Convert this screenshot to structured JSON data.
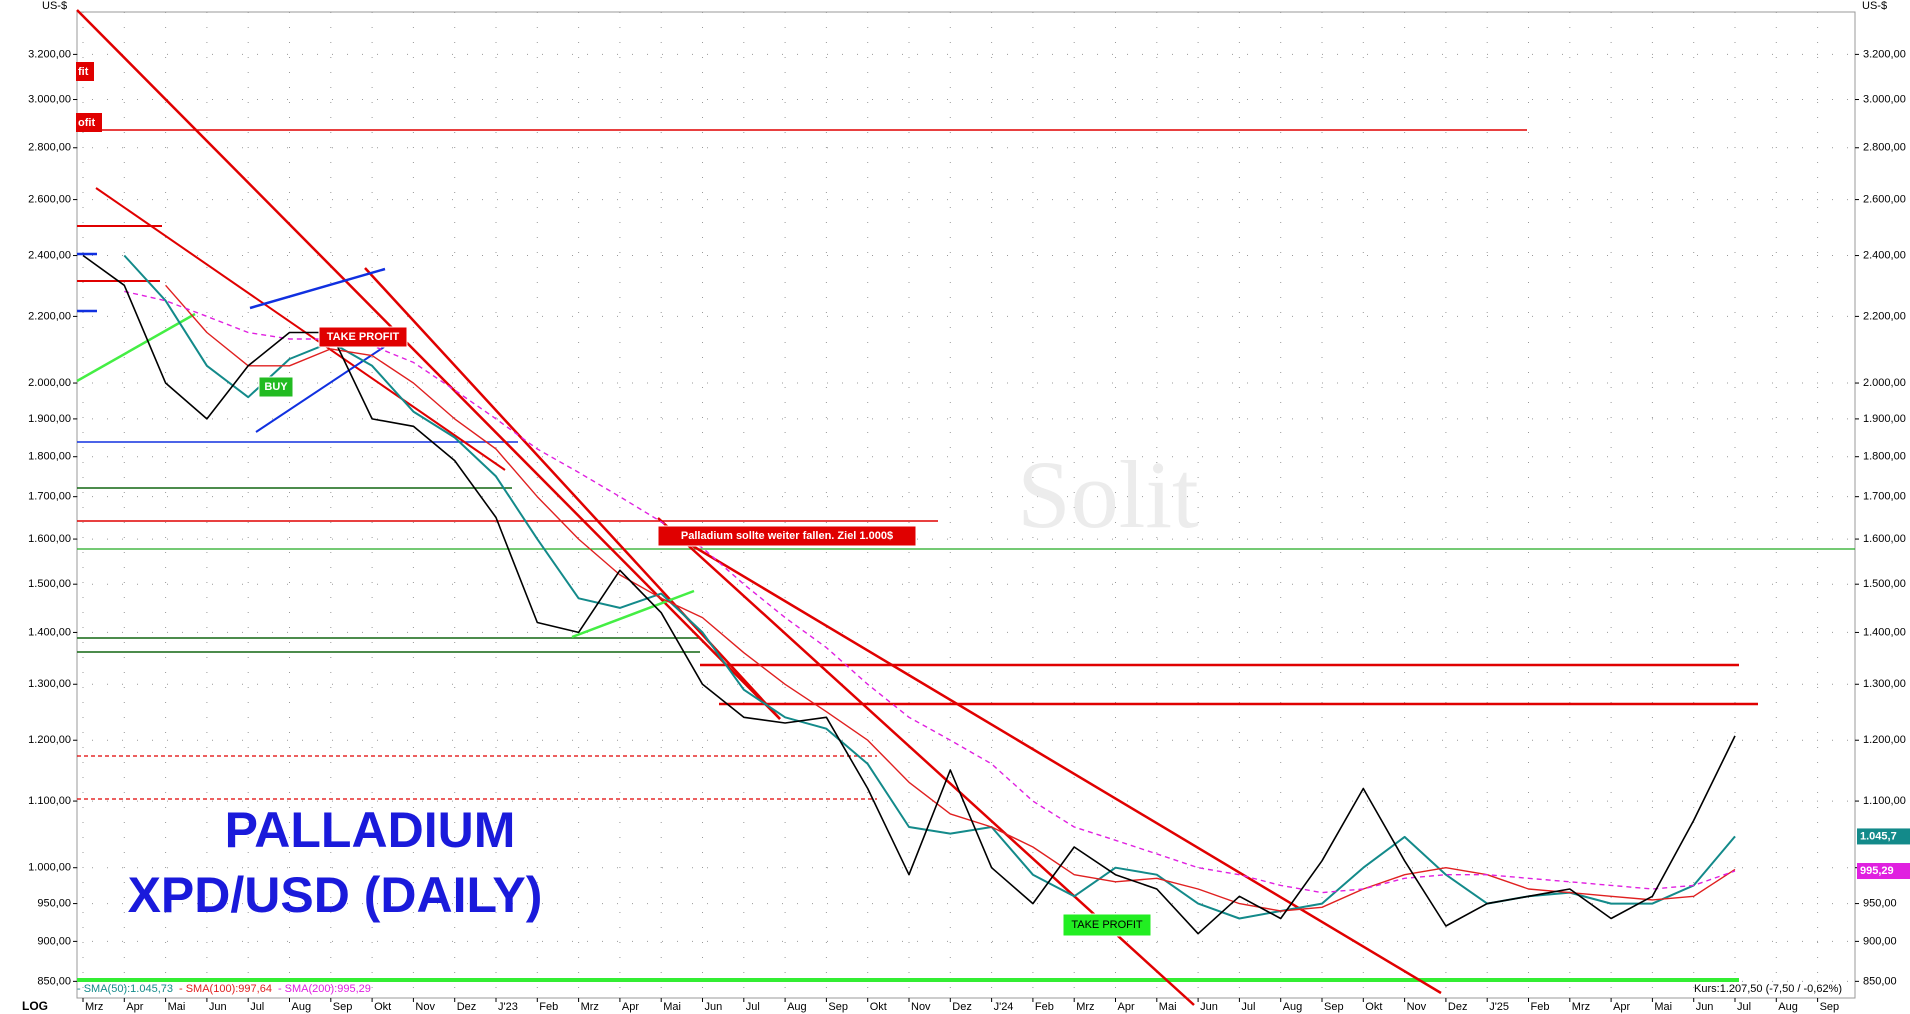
{
  "chart_data": {
    "type": "line",
    "log_scale": true,
    "grid": true,
    "title": "PALLADIUM",
    "subtitle": "XPD/USD (DAILY)",
    "y_unit": "US-$",
    "scale_label": "LOG",
    "watermark": "Solit",
    "quote": "Kurs:1.207,50 (-7,50 / -0,62%)",
    "annotations": [
      "TAKE PROFIT",
      "BUY",
      "Palladium sollte weiter fallen. Ziel 1.000$",
      "TAKE PROFIT",
      "fit",
      "ofit"
    ],
    "categories": [
      "Mrz",
      "Apr",
      "Mai",
      "Jun",
      "Jul",
      "Aug",
      "Sep",
      "Okt",
      "Nov",
      "Dez",
      "J'23",
      "Feb",
      "Mrz",
      "Apr",
      "Mai",
      "Jun",
      "Jul",
      "Aug",
      "Sep",
      "Okt",
      "Nov",
      "Dez",
      "J'24",
      "Feb",
      "Mrz",
      "Apr",
      "Mai",
      "Jun",
      "Jul",
      "Aug",
      "Sep",
      "Okt",
      "Nov",
      "Dez",
      "J'25",
      "Feb",
      "Mrz",
      "Apr",
      "Mai",
      "Jun",
      "Jul",
      "Aug",
      "Sep"
    ],
    "values": [
      2400,
      2300,
      2000,
      1900,
      2050,
      2150,
      2150,
      1900,
      1880,
      1790,
      1650,
      1420,
      1400,
      1530,
      1440,
      1300,
      1240,
      1230,
      1240,
      1120,
      990,
      1150,
      1000,
      950,
      1030,
      990,
      970,
      910,
      960,
      930,
      1010,
      1120,
      1010,
      920,
      950,
      960,
      970,
      930,
      960,
      1070,
      1207.5,
      null,
      null
    ],
    "color": "#000000",
    "series": [
      {
        "name": "- SMA(50):1.045,73",
        "color": "#138a8a",
        "end_label": "1.045,7",
        "values": [
          null,
          2400,
          2250,
          2050,
          1960,
          2070,
          2120,
          2050,
          1920,
          1850,
          1750,
          1600,
          1470,
          1450,
          1480,
          1400,
          1290,
          1240,
          1220,
          1160,
          1060,
          1050,
          1060,
          990,
          960,
          1000,
          990,
          950,
          930,
          940,
          950,
          1000,
          1045,
          990,
          950,
          960,
          965,
          950,
          950,
          975,
          1045.73,
          null,
          null
        ]
      },
      {
        "name": "- SMA(100):997,64",
        "color": "#e02020",
        "values": [
          null,
          null,
          2300,
          2150,
          2050,
          2050,
          2100,
          2080,
          2000,
          1900,
          1820,
          1700,
          1600,
          1520,
          1470,
          1430,
          1360,
          1300,
          1250,
          1200,
          1130,
          1080,
          1060,
          1030,
          990,
          980,
          985,
          970,
          950,
          940,
          945,
          970,
          990,
          1000,
          990,
          970,
          965,
          960,
          955,
          960,
          997.64,
          null,
          null
        ]
      },
      {
        "name": "- SMA(200):995,29",
        "color": "#e020e0",
        "dashed": true,
        "end_label": "995,29",
        "values": [
          null,
          2280,
          2250,
          2200,
          2150,
          2130,
          2130,
          2110,
          2060,
          1980,
          1900,
          1820,
          1760,
          1700,
          1640,
          1580,
          1500,
          1430,
          1370,
          1300,
          1240,
          1200,
          1160,
          1100,
          1060,
          1040,
          1020,
          1000,
          990,
          975,
          965,
          970,
          985,
          990,
          990,
          985,
          980,
          975,
          970,
          975,
          995.29,
          null,
          null
        ]
      }
    ],
    "ylim": [
      830,
      3400
    ],
    "yticks": [
      {
        "value": 850,
        "label": "850,00"
      },
      {
        "value": 900,
        "label": "900,00"
      },
      {
        "value": 950,
        "label": "950,00"
      },
      {
        "value": 1000,
        "label": "1.000,00"
      },
      {
        "value": 1100,
        "label": "1.100,00"
      },
      {
        "value": 1200,
        "label": "1.200,00"
      },
      {
        "value": 1300,
        "label": "1.300,00"
      },
      {
        "value": 1400,
        "label": "1.400,00"
      },
      {
        "value": 1500,
        "label": "1.500,00"
      },
      {
        "value": 1600,
        "label": "1.600,00"
      },
      {
        "value": 1700,
        "label": "1.700,00"
      },
      {
        "value": 1800,
        "label": "1.800,00"
      },
      {
        "value": 1900,
        "label": "1.900,00"
      },
      {
        "value": 2000,
        "label": "2.000,00"
      },
      {
        "value": 2200,
        "label": "2.200,00"
      },
      {
        "value": 2400,
        "label": "2.400,00"
      },
      {
        "value": 2600,
        "label": "2.600,00"
      },
      {
        "value": 2800,
        "label": "2.800,00"
      },
      {
        "value": 3000,
        "label": "3.000,00"
      },
      {
        "value": 3200,
        "label": "3.200,00"
      }
    ]
  }
}
